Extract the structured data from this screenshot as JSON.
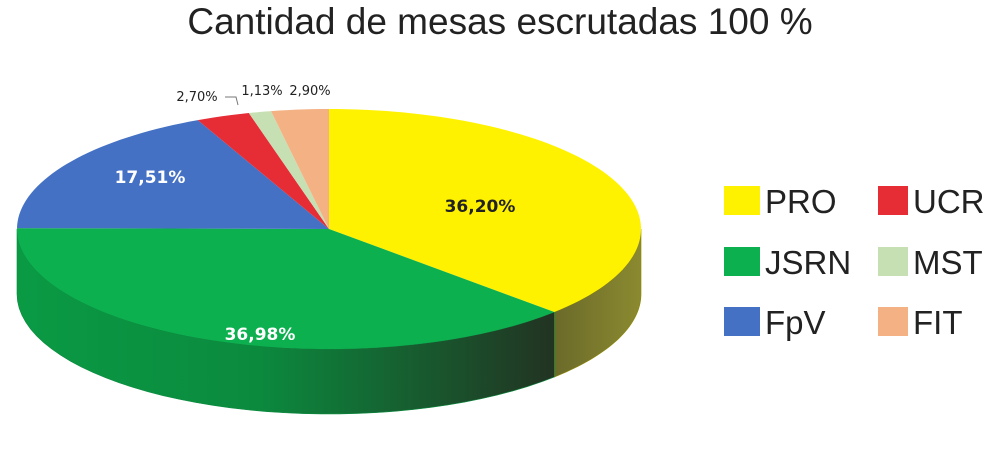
{
  "chart_data": {
    "type": "pie",
    "title": "Cantidad de mesas escrutadas 100 %",
    "slices": [
      {
        "name": "PRO",
        "value": 36.2,
        "label": "36,20%",
        "color": "#FFF200"
      },
      {
        "name": "JSRN",
        "value": 36.98,
        "label": "36,98%",
        "color": "#0CB04F"
      },
      {
        "name": "FpV",
        "value": 17.51,
        "label": "17,51%",
        "color": "#4471C4"
      },
      {
        "name": "UCR",
        "value": 2.7,
        "label": "2,70%",
        "color": "#E62D36"
      },
      {
        "name": "MST",
        "value": 1.13,
        "label": "1,13%",
        "color": "#C6E0B4"
      },
      {
        "name": "FIT",
        "value": 2.9,
        "label": "2,90%",
        "color": "#F4B184"
      }
    ],
    "legend_order": [
      "PRO",
      "UCR",
      "JSRN",
      "MST",
      "FpV",
      "FIT"
    ],
    "legend_placement": "right"
  }
}
